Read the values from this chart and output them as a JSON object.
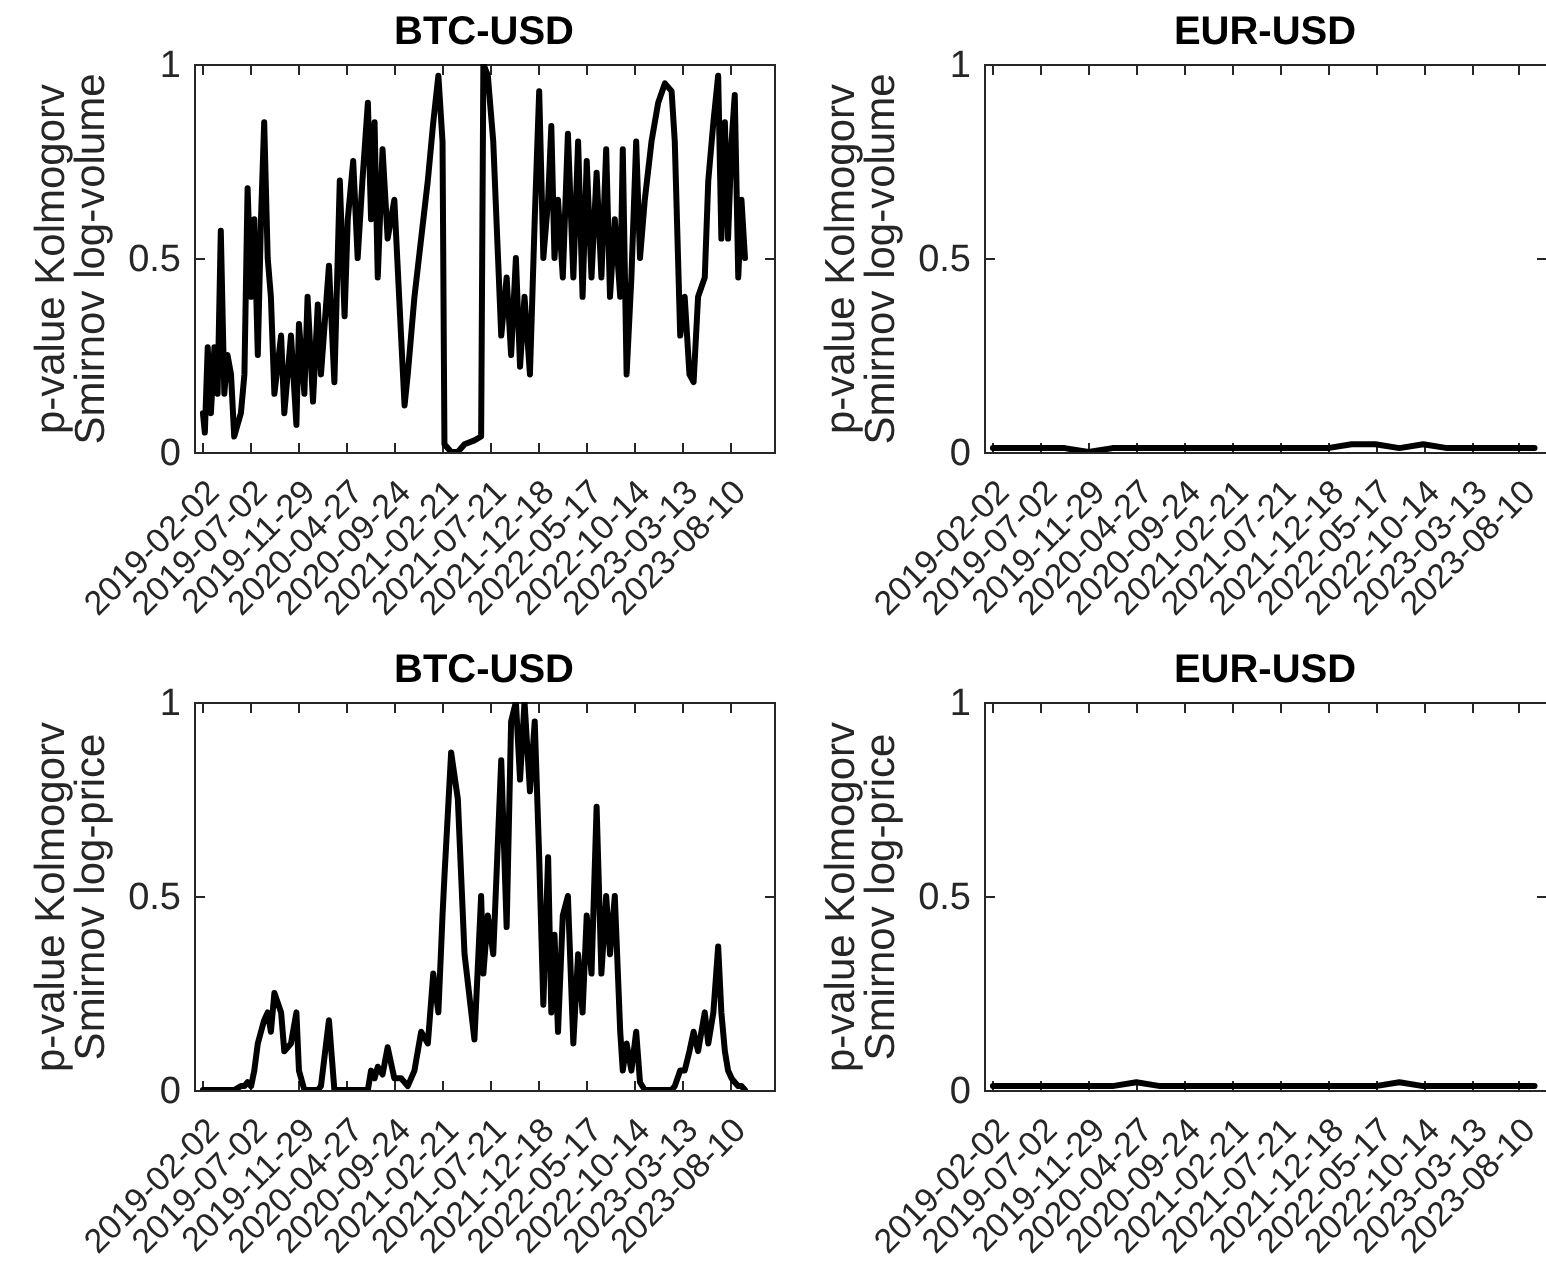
{
  "chart_data": [
    {
      "type": "line",
      "title": "BTC-USD",
      "ylabel": "p-value Kolmogorv\nSmirnov log-volume",
      "color": "#000000",
      "x": [
        "2019-02-02",
        "2019-02-08",
        "2019-02-17",
        "2019-02-27",
        "2019-03-10",
        "2019-03-20",
        "2019-03-30",
        "2019-04-10",
        "2019-04-20",
        "2019-05-01",
        "2019-05-11",
        "2019-06-01",
        "2019-06-12",
        "2019-06-22",
        "2019-07-03",
        "2019-07-13",
        "2019-07-24",
        "2019-08-03",
        "2019-08-13",
        "2019-08-24",
        "2019-09-03",
        "2019-09-14",
        "2019-10-05",
        "2019-10-15",
        "2019-11-05",
        "2019-11-22",
        "2019-11-30",
        "2019-12-17",
        "2019-12-27",
        "2020-01-13",
        "2020-01-28",
        "2020-02-07",
        "2020-03-03",
        "2020-03-20",
        "2020-04-06",
        "2020-04-21",
        "2020-05-01",
        "2020-05-18",
        "2020-06-01",
        "2020-06-16",
        "2020-07-03",
        "2020-07-13",
        "2020-07-24",
        "2020-08-03",
        "2020-08-18",
        "2020-09-03",
        "2020-09-24",
        "2020-10-15",
        "2020-10-26",
        "2020-11-05",
        "2020-11-26",
        "2020-12-17",
        "2021-01-07",
        "2021-01-24",
        "2021-02-09",
        "2021-02-22",
        "2021-02-28",
        "2021-03-21",
        "2021-04-11",
        "2021-05-02",
        "2021-06-02",
        "2021-06-23",
        "2021-06-30",
        "2021-07-14",
        "2021-07-31",
        "2021-08-15",
        "2021-08-25",
        "2021-09-11",
        "2021-09-25",
        "2021-10-10",
        "2021-10-23",
        "2021-11-06",
        "2021-11-23",
        "2021-12-08",
        "2021-12-22",
        "2022-01-04",
        "2022-01-19",
        "2022-01-29",
        "2022-02-08",
        "2022-02-19",
        "2022-03-06",
        "2022-03-22",
        "2022-04-08",
        "2022-04-23",
        "2022-05-07",
        "2022-05-20",
        "2022-06-04",
        "2022-06-20",
        "2022-07-05",
        "2022-07-20",
        "2022-08-01",
        "2022-08-16",
        "2022-09-02",
        "2022-09-10",
        "2022-09-22",
        "2022-10-07",
        "2022-10-22",
        "2022-11-03",
        "2022-11-18",
        "2022-12-09",
        "2022-12-30",
        "2023-01-20",
        "2023-02-10",
        "2023-02-20",
        "2023-03-09",
        "2023-03-23",
        "2023-04-07",
        "2023-04-20",
        "2023-05-04",
        "2023-05-25",
        "2023-06-05",
        "2023-06-21",
        "2023-07-06",
        "2023-07-16",
        "2023-07-27",
        "2023-08-06",
        "2023-08-17",
        "2023-08-27",
        "2023-09-07",
        "2023-09-17",
        "2023-09-28"
      ],
      "values": [
        0.1,
        0.05,
        0.27,
        0.1,
        0.27,
        0.15,
        0.57,
        0.15,
        0.25,
        0.2,
        0.04,
        0.1,
        0.2,
        0.68,
        0.4,
        0.6,
        0.25,
        0.6,
        0.85,
        0.5,
        0.4,
        0.15,
        0.3,
        0.1,
        0.3,
        0.07,
        0.33,
        0.15,
        0.4,
        0.13,
        0.38,
        0.2,
        0.48,
        0.18,
        0.7,
        0.35,
        0.6,
        0.75,
        0.5,
        0.7,
        0.9,
        0.6,
        0.85,
        0.45,
        0.78,
        0.55,
        0.65,
        0.3,
        0.12,
        0.2,
        0.4,
        0.55,
        0.7,
        0.85,
        0.97,
        0.8,
        0.02,
        0,
        0,
        0.02,
        0.03,
        0.04,
        1,
        0.97,
        0.8,
        0.5,
        0.3,
        0.45,
        0.25,
        0.5,
        0.22,
        0.4,
        0.2,
        0.6,
        0.93,
        0.5,
        0.65,
        0.84,
        0.5,
        0.65,
        0.45,
        0.82,
        0.45,
        0.8,
        0.4,
        0.75,
        0.45,
        0.72,
        0.45,
        0.78,
        0.4,
        0.6,
        0.4,
        0.78,
        0.2,
        0.45,
        0.8,
        0.5,
        0.65,
        0.8,
        0.9,
        0.95,
        0.93,
        0.8,
        0.3,
        0.4,
        0.2,
        0.18,
        0.4,
        0.45,
        0.7,
        0.85,
        0.97,
        0.55,
        0.85,
        0.55,
        0.8,
        0.92,
        0.45,
        0.65,
        0.5
      ],
      "xlim": [
        "2019-01-05",
        "2023-12-28"
      ],
      "xticks": [
        "2019-02-02",
        "2019-07-02",
        "2019-11-29",
        "2020-04-27",
        "2020-09-24",
        "2021-02-21",
        "2021-07-21",
        "2021-12-18",
        "2022-05-17",
        "2022-10-14",
        "2023-03-13",
        "2023-08-10"
      ],
      "ylim": [
        0,
        1
      ],
      "yticks": [
        0,
        0.5,
        1
      ]
    },
    {
      "type": "line",
      "title": "EUR-USD",
      "ylabel": "p-value Kolmogorv\nSmirnov log-volume",
      "color": "#000000",
      "x": [
        "2019-02-02",
        "2019-04-18",
        "2019-07-02",
        "2019-09-15",
        "2019-11-29",
        "2020-02-12",
        "2020-04-27",
        "2020-07-11",
        "2020-09-24",
        "2020-12-08",
        "2021-02-21",
        "2021-05-07",
        "2021-07-21",
        "2021-10-04",
        "2021-12-18",
        "2022-03-03",
        "2022-05-17",
        "2022-07-31",
        "2022-10-14",
        "2022-12-28",
        "2023-03-13",
        "2023-05-27",
        "2023-08-10",
        "2023-09-28"
      ],
      "values": [
        0.01,
        0.01,
        0.01,
        0.01,
        0,
        0.01,
        0.01,
        0.01,
        0.01,
        0.01,
        0.01,
        0.01,
        0.01,
        0.01,
        0.01,
        0.02,
        0.02,
        0.01,
        0.02,
        0.01,
        0.01,
        0.01,
        0.01,
        0.01
      ],
      "xlim": [
        "2019-01-05",
        "2023-11-03"
      ],
      "xticks": [
        "2019-02-02",
        "2019-07-02",
        "2019-11-29",
        "2020-04-27",
        "2020-09-24",
        "2021-02-21",
        "2021-07-21",
        "2021-12-18",
        "2022-05-17",
        "2022-10-14",
        "2023-03-13",
        "2023-08-10"
      ],
      "ylim": [
        0,
        1
      ],
      "yticks": [
        0,
        0.5,
        1
      ]
    },
    {
      "type": "line",
      "title": "BTC-USD",
      "ylabel": "p-value Kolmogorv\nSmirnov log-price",
      "color": "#000000",
      "x": [
        "2019-02-02",
        "2019-02-08",
        "2019-02-17",
        "2019-02-27",
        "2019-03-10",
        "2019-03-20",
        "2019-03-30",
        "2019-04-10",
        "2019-04-20",
        "2019-05-01",
        "2019-05-11",
        "2019-06-01",
        "2019-06-12",
        "2019-06-22",
        "2019-07-03",
        "2019-07-13",
        "2019-07-24",
        "2019-08-03",
        "2019-08-13",
        "2019-08-24",
        "2019-09-03",
        "2019-09-14",
        "2019-10-05",
        "2019-10-15",
        "2019-11-05",
        "2019-11-22",
        "2019-11-30",
        "2019-12-17",
        "2019-12-27",
        "2020-01-13",
        "2020-01-28",
        "2020-02-07",
        "2020-03-03",
        "2020-03-20",
        "2020-04-06",
        "2020-04-21",
        "2020-05-01",
        "2020-05-18",
        "2020-06-01",
        "2020-06-16",
        "2020-07-03",
        "2020-07-13",
        "2020-07-24",
        "2020-08-03",
        "2020-08-18",
        "2020-09-03",
        "2020-09-24",
        "2020-10-15",
        "2020-10-26",
        "2020-11-05",
        "2020-11-26",
        "2020-12-17",
        "2021-01-07",
        "2021-01-24",
        "2021-02-09",
        "2021-02-22",
        "2021-02-28",
        "2021-03-21",
        "2021-04-11",
        "2021-05-02",
        "2021-06-02",
        "2021-06-23",
        "2021-06-30",
        "2021-07-14",
        "2021-07-31",
        "2021-08-15",
        "2021-08-25",
        "2021-09-11",
        "2021-09-25",
        "2021-10-10",
        "2021-10-23",
        "2021-11-06",
        "2021-11-23",
        "2021-12-08",
        "2021-12-22",
        "2022-01-04",
        "2022-01-19",
        "2022-01-29",
        "2022-02-08",
        "2022-02-19",
        "2022-03-06",
        "2022-03-22",
        "2022-04-08",
        "2022-04-23",
        "2022-05-07",
        "2022-05-20",
        "2022-06-04",
        "2022-06-20",
        "2022-07-05",
        "2022-07-20",
        "2022-08-01",
        "2022-08-16",
        "2022-09-02",
        "2022-09-10",
        "2022-09-22",
        "2022-10-07",
        "2022-10-22",
        "2022-11-03",
        "2022-11-18",
        "2022-12-09",
        "2022-12-30",
        "2023-01-20",
        "2023-02-10",
        "2023-02-20",
        "2023-03-09",
        "2023-03-23",
        "2023-04-07",
        "2023-04-20",
        "2023-05-04",
        "2023-05-25",
        "2023-06-05",
        "2023-06-21",
        "2023-07-06",
        "2023-07-16",
        "2023-07-27",
        "2023-08-06",
        "2023-08-17",
        "2023-08-27",
        "2023-09-07",
        "2023-09-17",
        "2023-09-28"
      ],
      "values": [
        0,
        0,
        0,
        0,
        0,
        0,
        0,
        0,
        0,
        0,
        0,
        0.01,
        0.01,
        0.02,
        0.01,
        0.05,
        0.12,
        0.15,
        0.18,
        0.2,
        0.15,
        0.25,
        0.2,
        0.1,
        0.12,
        0.2,
        0.05,
        0,
        0,
        0,
        0,
        0.01,
        0.18,
        0,
        0,
        0,
        0,
        0,
        0,
        0,
        0,
        0.05,
        0.03,
        0.06,
        0.04,
        0.11,
        0.03,
        0.03,
        0.02,
        0.01,
        0.05,
        0.15,
        0.12,
        0.3,
        0.2,
        0.45,
        0.55,
        0.87,
        0.75,
        0.35,
        0.13,
        0.5,
        0.3,
        0.45,
        0.35,
        0.65,
        0.85,
        0.42,
        0.95,
        1,
        0.8,
        1,
        0.77,
        0.95,
        0.6,
        0.22,
        0.6,
        0.2,
        0.4,
        0.15,
        0.45,
        0.5,
        0.12,
        0.35,
        0.2,
        0.45,
        0.3,
        0.73,
        0.3,
        0.5,
        0.35,
        0.5,
        0.15,
        0.05,
        0.12,
        0.05,
        0.15,
        0.02,
        0,
        0,
        0,
        0,
        0,
        0.01,
        0.05,
        0.05,
        0.1,
        0.15,
        0.1,
        0.2,
        0.12,
        0.2,
        0.37,
        0.2,
        0.1,
        0.05,
        0.03,
        0.02,
        0.01,
        0.01,
        0
      ],
      "xlim": [
        "2019-01-05",
        "2023-12-28"
      ],
      "xticks": [
        "2019-02-02",
        "2019-07-02",
        "2019-11-29",
        "2020-04-27",
        "2020-09-24",
        "2021-02-21",
        "2021-07-21",
        "2021-12-18",
        "2022-05-17",
        "2022-10-14",
        "2023-03-13",
        "2023-08-10"
      ],
      "ylim": [
        0,
        1
      ],
      "yticks": [
        0,
        0.5,
        1
      ]
    },
    {
      "type": "line",
      "title": "EUR-USD",
      "ylabel": "p-value Kolmogorv\nSmirnov log-price",
      "color": "#000000",
      "x": [
        "2019-02-02",
        "2019-04-18",
        "2019-07-02",
        "2019-09-15",
        "2019-11-29",
        "2020-02-12",
        "2020-04-27",
        "2020-07-11",
        "2020-09-24",
        "2020-12-08",
        "2021-02-21",
        "2021-05-07",
        "2021-07-21",
        "2021-10-04",
        "2021-12-18",
        "2022-03-03",
        "2022-05-17",
        "2022-07-31",
        "2022-10-14",
        "2022-12-28",
        "2023-03-13",
        "2023-05-27",
        "2023-08-10",
        "2023-09-28"
      ],
      "values": [
        0.01,
        0.01,
        0.01,
        0.01,
        0.01,
        0.01,
        0.02,
        0.01,
        0.01,
        0.01,
        0.01,
        0.01,
        0.01,
        0.01,
        0.01,
        0.01,
        0.01,
        0.02,
        0.01,
        0.01,
        0.01,
        0.01,
        0.01,
        0.01
      ],
      "xlim": [
        "2019-01-05",
        "2023-11-03"
      ],
      "xticks": [
        "2019-02-02",
        "2019-07-02",
        "2019-11-29",
        "2020-04-27",
        "2020-09-24",
        "2021-02-21",
        "2021-07-21",
        "2021-12-18",
        "2022-05-17",
        "2022-10-14",
        "2023-03-13",
        "2023-08-10"
      ],
      "ylim": [
        0,
        1
      ],
      "yticks": [
        0,
        0.5,
        1
      ]
    }
  ]
}
